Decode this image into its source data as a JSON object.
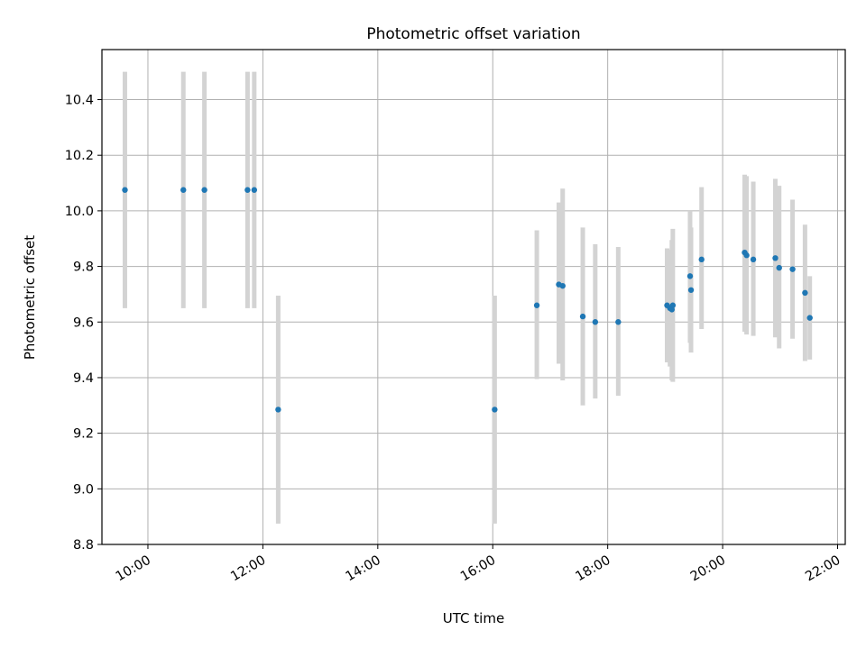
{
  "chart_data": {
    "type": "scatter",
    "title": "Photometric offset variation",
    "xlabel": "UTC time",
    "ylabel": "Photometric offset",
    "x_unit": "time of day (UTC)",
    "xlim": [
      "09:12",
      "22:08"
    ],
    "ylim": [
      8.8,
      10.58
    ],
    "x_ticks": [
      "10:00",
      "12:00",
      "14:00",
      "16:00",
      "18:00",
      "20:00",
      "22:00"
    ],
    "y_ticks": [
      "8.8",
      "9.0",
      "9.2",
      "9.4",
      "9.6",
      "9.8",
      "10.0",
      "10.2",
      "10.4"
    ],
    "grid": true,
    "marker_color": "#1f77b4",
    "errorbar_color": "#d3d3d3",
    "points": [
      {
        "time": "09:36",
        "offset": 10.075,
        "low": 9.65,
        "high": 10.5
      },
      {
        "time": "10:37",
        "offset": 10.075,
        "low": 9.65,
        "high": 10.5
      },
      {
        "time": "10:59",
        "offset": 10.075,
        "low": 9.65,
        "high": 10.5
      },
      {
        "time": "11:44",
        "offset": 10.075,
        "low": 9.65,
        "high": 10.5
      },
      {
        "time": "11:51",
        "offset": 10.075,
        "low": 9.65,
        "high": 10.5
      },
      {
        "time": "12:16",
        "offset": 9.285,
        "low": 8.875,
        "high": 9.695
      },
      {
        "time": "16:02",
        "offset": 9.285,
        "low": 8.875,
        "high": 9.695
      },
      {
        "time": "16:46",
        "offset": 9.66,
        "low": 9.395,
        "high": 9.93
      },
      {
        "time": "17:09",
        "offset": 9.735,
        "low": 9.45,
        "high": 10.03
      },
      {
        "time": "17:13",
        "offset": 9.73,
        "low": 9.39,
        "high": 10.08
      },
      {
        "time": "17:34",
        "offset": 9.62,
        "low": 9.3,
        "high": 9.94
      },
      {
        "time": "17:47",
        "offset": 9.6,
        "low": 9.325,
        "high": 9.88
      },
      {
        "time": "18:11",
        "offset": 9.6,
        "low": 9.335,
        "high": 9.87
      },
      {
        "time": "19:02",
        "offset": 9.66,
        "low": 9.455,
        "high": 9.865
      },
      {
        "time": "19:05",
        "offset": 9.65,
        "low": 9.44,
        "high": 9.86
      },
      {
        "time": "19:07",
        "offset": 9.645,
        "low": 9.39,
        "high": 9.895
      },
      {
        "time": "19:08",
        "offset": 9.66,
        "low": 9.385,
        "high": 9.935
      },
      {
        "time": "19:26",
        "offset": 9.765,
        "low": 9.525,
        "high": 10.0
      },
      {
        "time": "19:27",
        "offset": 9.715,
        "low": 9.49,
        "high": 9.94
      },
      {
        "time": "19:38",
        "offset": 9.825,
        "low": 9.575,
        "high": 10.085
      },
      {
        "time": "20:23",
        "offset": 9.85,
        "low": 9.565,
        "high": 10.13
      },
      {
        "time": "20:25",
        "offset": 9.84,
        "low": 9.555,
        "high": 10.125
      },
      {
        "time": "20:32",
        "offset": 9.825,
        "low": 9.55,
        "high": 10.105
      },
      {
        "time": "20:55",
        "offset": 9.83,
        "low": 9.545,
        "high": 10.115
      },
      {
        "time": "20:59",
        "offset": 9.795,
        "low": 9.505,
        "high": 10.09
      },
      {
        "time": "21:13",
        "offset": 9.79,
        "low": 9.54,
        "high": 10.04
      },
      {
        "time": "21:26",
        "offset": 9.705,
        "low": 9.46,
        "high": 9.95
      },
      {
        "time": "21:31",
        "offset": 9.615,
        "low": 9.465,
        "high": 9.765
      }
    ]
  }
}
